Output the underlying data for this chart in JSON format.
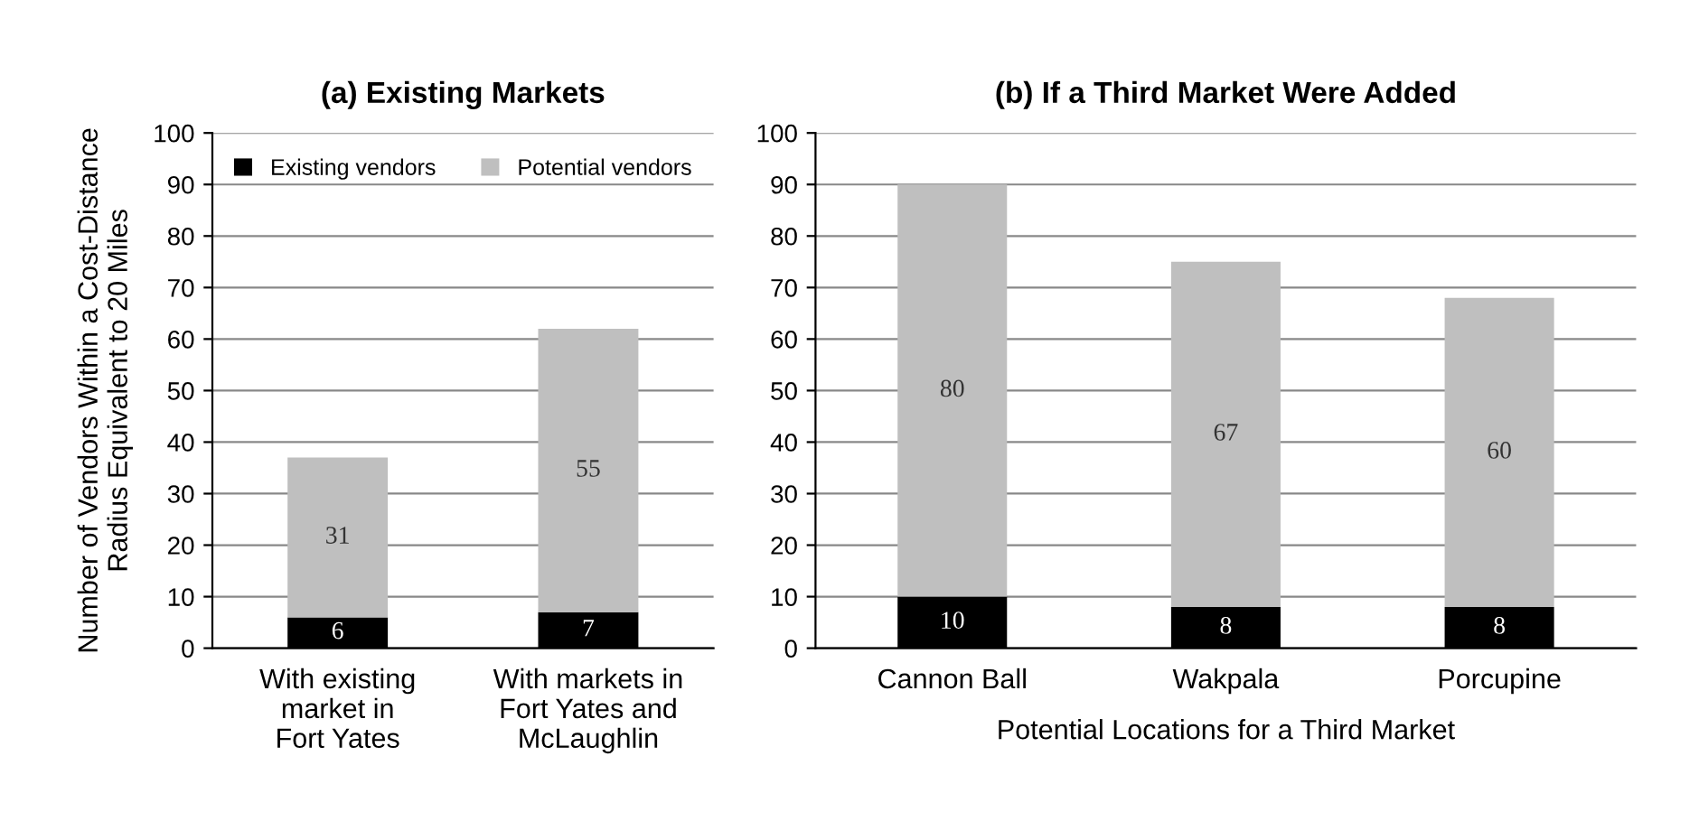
{
  "chart_data": [
    {
      "type": "bar",
      "title": "(a) Existing Markets",
      "ylabel": "Number of Vendors Within a Cost-Distance\nRadius Equivalent to 20 Miles",
      "categories": [
        "With existing\nmarket in\nFort Yates",
        "With markets in\nFort Yates and\nMcLaughlin"
      ],
      "stacked": true,
      "series": [
        {
          "name": "Existing vendors",
          "color": "#000000",
          "values": [
            6,
            7
          ]
        },
        {
          "name": "Potential vendors",
          "color": "#bfbfbf",
          "values": [
            31,
            55
          ]
        }
      ],
      "ylim": [
        0,
        100
      ],
      "yticks": [
        0,
        10,
        20,
        30,
        40,
        50,
        60,
        70,
        80,
        90,
        100
      ],
      "grid": "y",
      "legend": "top",
      "data_labels": true
    },
    {
      "type": "bar",
      "title": "(b) If a Third Market Were Added",
      "xlabel": "Potential Locations for a Third Market",
      "categories": [
        "Cannon Ball",
        "Wakpala",
        "Porcupine"
      ],
      "stacked": true,
      "series": [
        {
          "color": "#000000",
          "values": [
            10,
            8,
            8
          ]
        },
        {
          "color": "#bfbfbf",
          "values": [
            80,
            67,
            60
          ]
        }
      ],
      "ylim": [
        0,
        100
      ],
      "yticks": [
        0,
        10,
        20,
        30,
        40,
        50,
        60,
        70,
        80,
        90,
        100
      ],
      "grid": "y",
      "data_labels": true
    }
  ]
}
